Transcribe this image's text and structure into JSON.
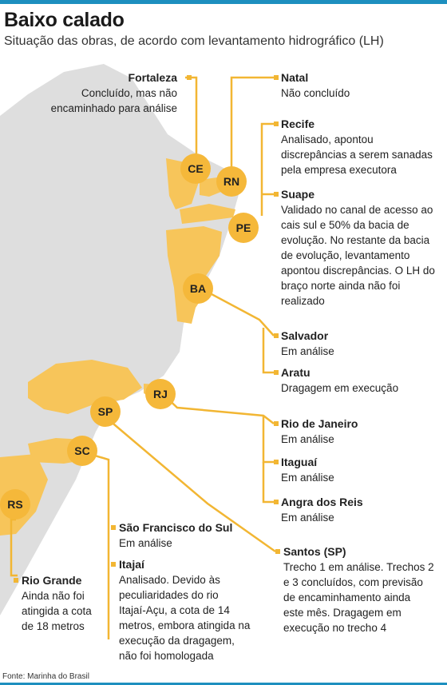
{
  "title": "Baixo calado",
  "subtitle": "Situação das obras, de acordo com levantamento hidrográfico (LH)",
  "colors": {
    "accent": "#1d8fbf",
    "highlight": "#f5b83a",
    "land": "#dcdcdc"
  },
  "states": {
    "ce": "CE",
    "rn": "RN",
    "pe": "PE",
    "ba": "BA",
    "rj": "RJ",
    "sp": "SP",
    "sc": "SC",
    "rs": "RS"
  },
  "ports": {
    "fortaleza": {
      "name": "Fortaleza",
      "desc": "Concluído, mas não\nencaminhado para análise"
    },
    "natal": {
      "name": "Natal",
      "desc": "Não concluído"
    },
    "recife": {
      "name": "Recife",
      "desc": "Analisado, apontou\ndiscrepâncias a serem sanadas\npela empresa executora"
    },
    "suape": {
      "name": "Suape",
      "desc": "Validado no canal de acesso ao\ncais sul e 50% da bacia de\nevolução. No restante da bacia\nde evolução, levantamento\napontou discrepâncias. O LH do\nbraço norte ainda não foi\nrealizado"
    },
    "salvador": {
      "name": "Salvador",
      "desc": "Em análise"
    },
    "aratu": {
      "name": "Aratu",
      "desc": "Dragagem em execução"
    },
    "rio": {
      "name": "Rio de Janeiro",
      "desc": "Em análise"
    },
    "itaguai": {
      "name": "Itaguaí",
      "desc": "Em análise"
    },
    "angra": {
      "name": "Angra dos Reis",
      "desc": "Em análise"
    },
    "santos": {
      "name": "Santos (SP)",
      "desc": "Trecho 1 em análise. Trechos 2\ne 3 concluídos, com previsão\nde encaminhamento  ainda\neste mês. Dragagem em\nexecução no trecho 4"
    },
    "sfs": {
      "name": "São Francisco do Sul",
      "desc": "Em análise"
    },
    "itajai": {
      "name": "Itajaí",
      "desc": "Analisado. Devido às\npeculiaridades do rio\nItajaí-Açu, a cota de 14\nmetros, embora atingida na\nexecução da dragagem,\nnão foi homologada"
    },
    "riogrande": {
      "name": "Rio Grande",
      "desc": "Ainda não foi\natingida a cota\nde 18 metros"
    }
  },
  "source": "Fonte: Marinha do Brasil"
}
